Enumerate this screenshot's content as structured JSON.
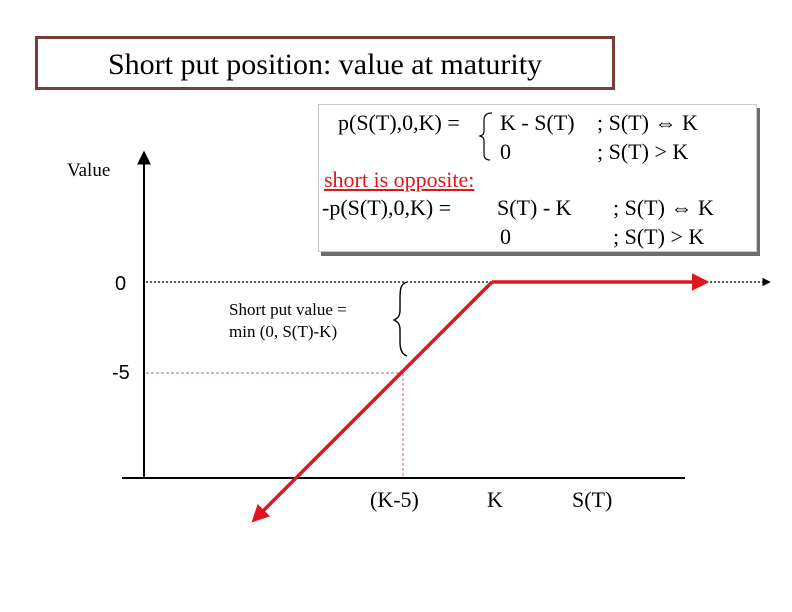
{
  "title": "Short put position: value at maturity",
  "formula": {
    "line1_lhs": "p(S(T),0,K) =",
    "line1_case1": "K  -  S(T)",
    "line1_cond1": ";  S(T) ⇔ K",
    "line2_case2": "0",
    "line2_cond2": ";  S(T) > K",
    "short_heading": "short is opposite:",
    "line4_lhs": "-p(S(T),0,K) =",
    "line4_case1": "S(T) - K",
    "line4_cond1": "; S(T) ⇔ K",
    "line5_case2": "0",
    "line5_cond2": ";  S(T) > K"
  },
  "axis": {
    "y_label": "Value",
    "tick_zero": "0",
    "tick_minus5": "-5",
    "x_tick_k_minus_5": "(K-5)",
    "x_tick_k": "K",
    "x_label": "S(T)"
  },
  "annotation": {
    "line1": "Short put value =",
    "line2": "min (0, S(T)-K)"
  },
  "colors": {
    "payoff_line": "#e0161c",
    "title_border": "#7a3b3b",
    "axis": "#000000",
    "guide_dotted": "#b98aa6"
  }
}
